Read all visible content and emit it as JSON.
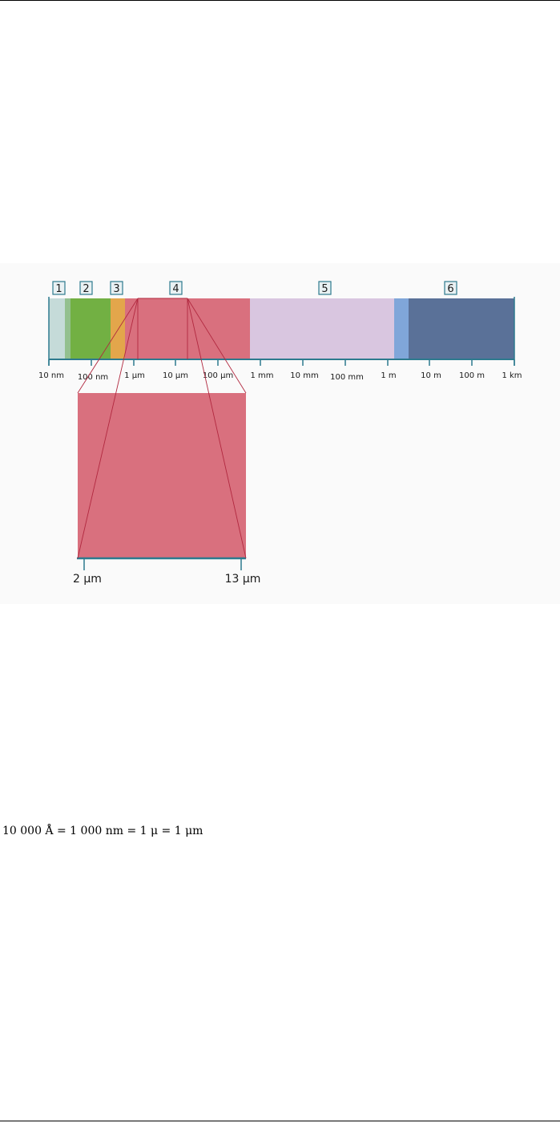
{
  "figure": {
    "band_numbers": [
      "1",
      "2",
      "3",
      "4",
      "5",
      "6"
    ],
    "scale_labels": [
      "10 nm",
      "100 nm",
      "1 µm",
      "10 µm",
      "100 µm",
      "1 mm",
      "10 mm",
      "100 mm",
      "1 m",
      "10 m",
      "100 m",
      "1 km"
    ],
    "zoom": {
      "start_label": "2 µm",
      "end_label": "13 µm"
    },
    "colors": {
      "band_1": "#c5dbd9",
      "band_1_edge": "#93c08f",
      "band_2": "#72b043",
      "band_3": "#e3a64b",
      "band_4": "#d9707e",
      "band_5": "#d9c6e0",
      "band_5_edge": "#80a6d9",
      "band_6": "#5a7198",
      "axis": "#2d7a8e",
      "zoom_line": "#b1283f"
    }
  },
  "equation": "10 000 Å = 1 000 nm = 1 μ = 1 μm"
}
